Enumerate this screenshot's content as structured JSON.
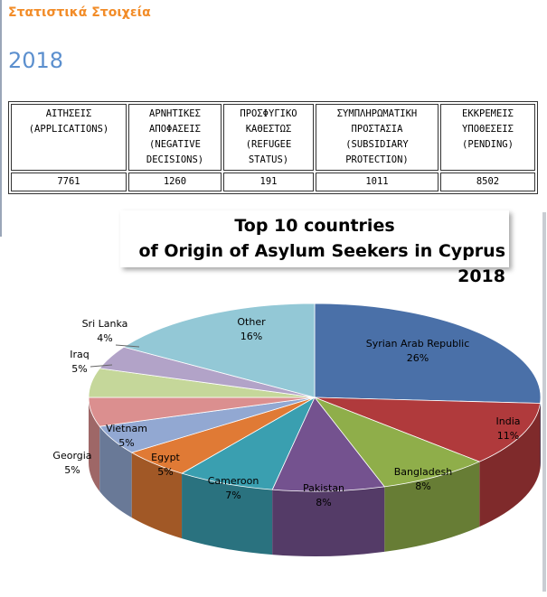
{
  "header": {
    "title": "Στατιστικά Στοιχεία",
    "year": "2018"
  },
  "table": {
    "columns": [
      [
        "ΑΙΤΗΣΕΙΣ",
        "(APPLICATIONS)"
      ],
      [
        "ΑΡΝΗΤΙΚΕΣ",
        "ΑΠΟΦΑΣΕΙΣ",
        "(NEGATIVE",
        "DECISIONS)"
      ],
      [
        "ΠΡΟΣΦΥΓΙΚΟ",
        "ΚΑΘΕΣΤΩΣ",
        "(REFUGEE",
        "STATUS)"
      ],
      [
        "ΣΥΜΠΛΗΡΩΜΑΤΙΚΗ",
        "ΠΡΟΣΤΑΣΙΑ",
        "(SUBSIDIARY",
        "PROTECTION)"
      ],
      [
        "ΕΚΚΡΕΜΕΙΣ",
        "ΥΠΟΘΕΣΕΙΣ",
        "(PENDING)"
      ]
    ],
    "values": [
      "7761",
      "1260",
      "191",
      "1011",
      "8502"
    ]
  },
  "chart_data": {
    "type": "pie",
    "title_lines": [
      "Top 10 countries",
      "of Origin of Asylum Seekers in Cyprus 2018"
    ],
    "slices": [
      {
        "label": "Syrian Arab Republic",
        "value_label": "26%",
        "value": 26,
        "color": "#4a70a8"
      },
      {
        "label": "India",
        "value_label": "11%",
        "value": 11,
        "color": "#b03a3c"
      },
      {
        "label": "Bangladesh",
        "value_label": "8%",
        "value": 8,
        "color": "#8fae4a"
      },
      {
        "label": "Pakistan",
        "value_label": "8%",
        "value": 8,
        "color": "#74528f"
      },
      {
        "label": "Cameroon",
        "value_label": "7%",
        "value": 7,
        "color": "#3a9fb0"
      },
      {
        "label": "Egypt",
        "value_label": "5%",
        "value": 5,
        "color": "#e07a35"
      },
      {
        "label": "Vietnam",
        "value_label": "5%",
        "value": 5,
        "color": "#92a8d2"
      },
      {
        "label": "Georgia",
        "value_label": "5%",
        "value": 5,
        "color": "#db8f8f"
      },
      {
        "label": "Iraq",
        "value_label": "5%",
        "value": 5,
        "color": "#c5d79a"
      },
      {
        "label": "Sri Lanka",
        "value_label": "4%",
        "value": 4,
        "color": "#b2a3c8"
      },
      {
        "label": "Other",
        "value_label": "16%",
        "value": 16,
        "color": "#93c8d6"
      }
    ]
  }
}
